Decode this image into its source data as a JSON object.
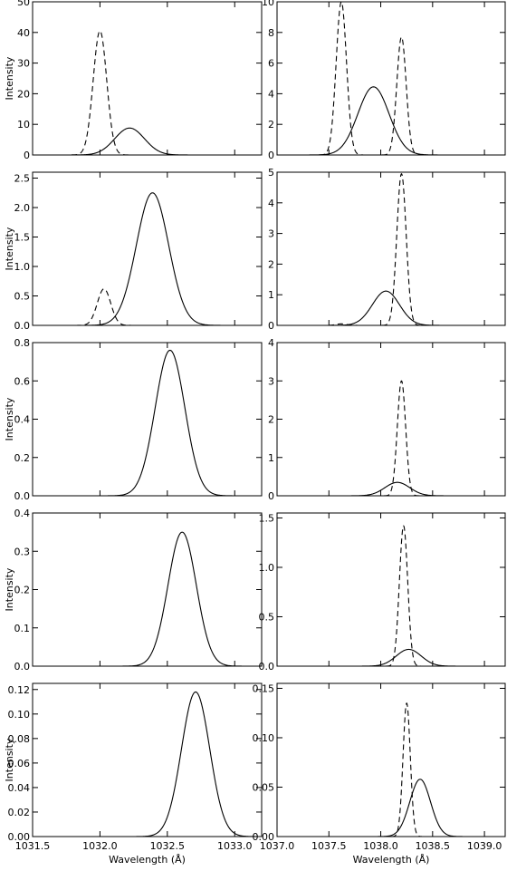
{
  "chart_data": [
    {
      "type": "line",
      "ylabel": "Intensity",
      "xlabel": "",
      "xlim": [
        1031.5,
        1033.2
      ],
      "ylim": [
        0,
        50
      ],
      "yticks": [
        "0",
        "10",
        "20",
        "30",
        "40",
        "50"
      ],
      "xticks": [],
      "series": [
        {
          "style": "solid",
          "peak": [
            1032.22,
            8.8
          ],
          "sigma": 0.11
        },
        {
          "style": "dashed",
          "peak": [
            1032.0,
            40.5
          ],
          "sigma": 0.05
        }
      ]
    },
    {
      "type": "line",
      "ylabel": "",
      "xlabel": "",
      "xlim": [
        1037.0,
        1039.2
      ],
      "ylim": [
        0,
        10
      ],
      "yticks": [
        "0",
        "2",
        "4",
        "6",
        "8",
        "10"
      ],
      "xticks": [],
      "series": [
        {
          "style": "solid",
          "peak": [
            1037.93,
            4.45
          ],
          "sigma": 0.15
        },
        {
          "style": "dashed",
          "peak": [
            1037.62,
            10.0
          ],
          "sigma": 0.05
        },
        {
          "style": "dashed",
          "peak": [
            1038.2,
            7.7
          ],
          "sigma": 0.045
        }
      ]
    },
    {
      "type": "line",
      "ylabel": "Intensity",
      "xlabel": "",
      "xlim": [
        1031.5,
        1033.2
      ],
      "ylim": [
        0,
        2.6
      ],
      "yticks": [
        "0.0",
        "0.5",
        "1.0",
        "1.5",
        "2.0",
        "2.5"
      ],
      "xticks": [],
      "series": [
        {
          "style": "solid",
          "peak": [
            1032.39,
            2.25
          ],
          "sigma": 0.12
        },
        {
          "style": "dashed",
          "peak": [
            1032.03,
            0.62
          ],
          "sigma": 0.05
        }
      ]
    },
    {
      "type": "line",
      "ylabel": "",
      "xlabel": "",
      "xlim": [
        1037.0,
        1039.2
      ],
      "ylim": [
        0,
        5
      ],
      "yticks": [
        "0",
        "1",
        "2",
        "3",
        "4",
        "5"
      ],
      "xticks": [],
      "series": [
        {
          "style": "solid",
          "peak": [
            1038.05,
            1.12
          ],
          "sigma": 0.13
        },
        {
          "style": "dashed",
          "peak": [
            1038.2,
            4.95
          ],
          "sigma": 0.045
        },
        {
          "style": "dashed",
          "peak": [
            1037.62,
            0.05
          ],
          "sigma": 0.05
        }
      ]
    },
    {
      "type": "line",
      "ylabel": "Intensity",
      "xlabel": "",
      "xlim": [
        1031.5,
        1033.2
      ],
      "ylim": [
        0,
        0.8
      ],
      "yticks": [
        "0.0",
        "0.2",
        "0.4",
        "0.6",
        "0.8"
      ],
      "xticks": [],
      "series": [
        {
          "style": "solid",
          "peak": [
            1032.52,
            0.76
          ],
          "sigma": 0.11
        }
      ]
    },
    {
      "type": "line",
      "ylabel": "",
      "xlabel": "",
      "xlim": [
        1037.0,
        1039.2
      ],
      "ylim": [
        0,
        4
      ],
      "yticks": [
        "0",
        "1",
        "2",
        "3",
        "4"
      ],
      "xticks": [],
      "series": [
        {
          "style": "solid",
          "peak": [
            1038.16,
            0.35
          ],
          "sigma": 0.12
        },
        {
          "style": "dashed",
          "peak": [
            1038.2,
            3.0
          ],
          "sigma": 0.04
        }
      ]
    },
    {
      "type": "line",
      "ylabel": "Intensity",
      "xlabel": "",
      "xlim": [
        1031.5,
        1033.2
      ],
      "ylim": [
        0,
        0.4
      ],
      "yticks": [
        "0.0",
        "0.1",
        "0.2",
        "0.3",
        "0.4"
      ],
      "xticks": [],
      "series": [
        {
          "style": "solid",
          "peak": [
            1032.61,
            0.35
          ],
          "sigma": 0.105
        }
      ]
    },
    {
      "type": "line",
      "ylabel": "",
      "xlabel": "",
      "xlim": [
        1037.0,
        1039.2
      ],
      "ylim": [
        0,
        1.55
      ],
      "yticks": [
        "0.0",
        "0.5",
        "1.0",
        "1.5"
      ],
      "xticks": [],
      "series": [
        {
          "style": "solid",
          "peak": [
            1038.27,
            0.17
          ],
          "sigma": 0.12
        },
        {
          "style": "dashed",
          "peak": [
            1038.22,
            1.42
          ],
          "sigma": 0.04
        }
      ]
    },
    {
      "type": "line",
      "ylabel": "Intensity",
      "xlabel": "Wavelength (Å)",
      "xlim": [
        1031.5,
        1033.2
      ],
      "ylim": [
        0,
        0.125
      ],
      "yticks": [
        "0.00",
        "0.02",
        "0.04",
        "0.06",
        "0.08",
        "0.10",
        "0.12"
      ],
      "xticks": [
        "1031.5",
        "1032.0",
        "1032.5",
        "1033.0"
      ],
      "series": [
        {
          "style": "solid",
          "peak": [
            1032.71,
            0.118
          ],
          "sigma": 0.105
        }
      ]
    },
    {
      "type": "line",
      "ylabel": "",
      "xlabel": "Wavelength (Å)",
      "xlim": [
        1037.0,
        1039.2
      ],
      "ylim": [
        0,
        0.155
      ],
      "yticks": [
        "0.00",
        "0.05",
        "0.10",
        "0.15"
      ],
      "xticks": [
        "1037.0",
        "1037.5",
        "1038.0",
        "1038.5",
        "1039.0"
      ],
      "series": [
        {
          "style": "solid",
          "peak": [
            1038.38,
            0.058
          ],
          "sigma": 0.1
        },
        {
          "style": "dashed",
          "peak": [
            1038.25,
            0.135
          ],
          "sigma": 0.035
        }
      ]
    }
  ]
}
